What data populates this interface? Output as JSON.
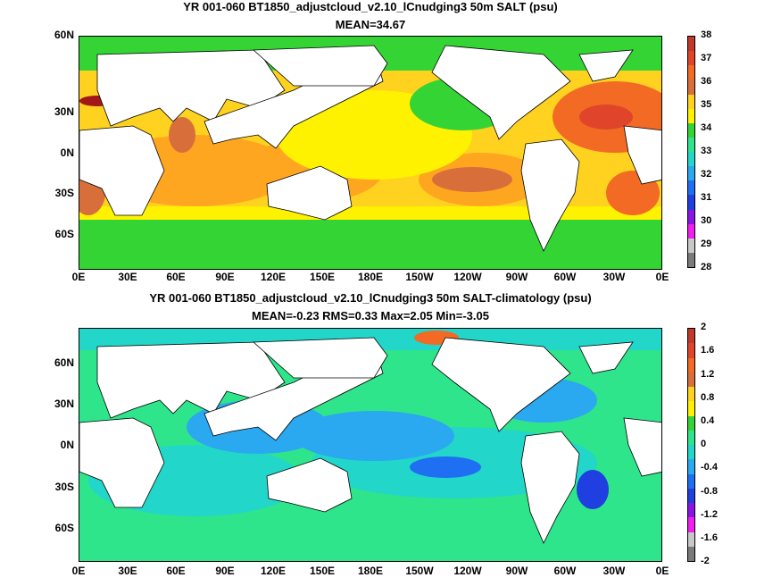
{
  "panels": [
    {
      "title_line1": "YR 001-060 BT1850_adjustcloud_v2.10_lCnudging3 50m SALT (psu)",
      "title_line2": "MEAN=34.67",
      "y_ticks": [
        "60N",
        "30N",
        "0N",
        "30S",
        "60S"
      ],
      "x_ticks": [
        "0E",
        "30E",
        "60E",
        "90E",
        "120E",
        "150E",
        "180E",
        "150W",
        "120W",
        "90W",
        "60W",
        "30W",
        "0E"
      ],
      "colorbar": {
        "labels": [
          "38",
          "37",
          "36",
          "35",
          "34",
          "33",
          "32",
          "31",
          "30",
          "29",
          "28"
        ],
        "colors": [
          "#c0392b",
          "#e0442a",
          "#f26a24",
          "#d86f3a",
          "#ffd21f",
          "#fff200",
          "#35d435",
          "#2ee58c",
          "#22d6c9",
          "#2aa8f0",
          "#1f6ff2",
          "#1f3fe0",
          "#8a14e8",
          "#f01ef0",
          "#c8c8c8",
          "#7a7a7a"
        ]
      }
    },
    {
      "title_line1": "YR 001-060 BT1850_adjustcloud_v2.10_lCnudging3 50m SALT-climatology (psu)",
      "title_line2": "MEAN=-0.23   RMS=0.33   Max=2.05   Min=-3.05",
      "y_ticks": [
        "60N",
        "30N",
        "0N",
        "30S",
        "60S"
      ],
      "x_ticks": [
        "0E",
        "30E",
        "60E",
        "90E",
        "120E",
        "150E",
        "180E",
        "150W",
        "120W",
        "90W",
        "60W",
        "30W",
        "0E"
      ],
      "colorbar": {
        "labels": [
          "2",
          "1.6",
          "1.2",
          "0.8",
          "0.4",
          "0",
          "-0.4",
          "-0.8",
          "-1.2",
          "-1.6",
          "-2"
        ],
        "colors": [
          "#c0392b",
          "#e0442a",
          "#f26a24",
          "#d86f3a",
          "#ffd21f",
          "#fff200",
          "#35d435",
          "#2ee58c",
          "#22d6c9",
          "#2aa8f0",
          "#1f6ff2",
          "#1f3fe0",
          "#8a14e8",
          "#f01ef0",
          "#c8c8c8",
          "#7a7a7a"
        ]
      }
    }
  ]
}
